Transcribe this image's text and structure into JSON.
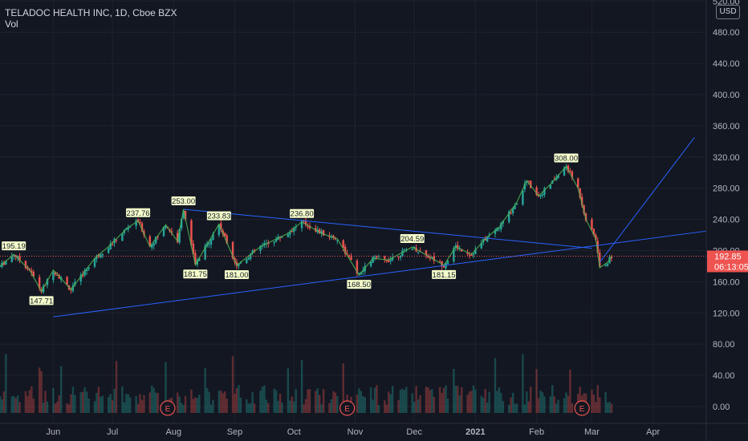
{
  "header": {
    "symbol_line": "TELADOC HEALTH INC, 1D, Cboe BZX",
    "volume_label": "Vol",
    "currency": "USD"
  },
  "colors": {
    "background": "#131722",
    "up": "#26a69a",
    "down": "#ef5350",
    "trendline": "#2962ff",
    "zigzag": "#4caf50",
    "pivot_label_bg": "#f5ffcc",
    "price_line": "#ef5350",
    "axis_text": "#b2b5be",
    "grid": "#1e222d",
    "earnings_marker": "#ef5350"
  },
  "chart_data": {
    "type": "candlestick",
    "title": "TELADOC HEALTH INC, 1D, Cboe BZX",
    "y_ticks": [
      "0.00",
      "40.00",
      "80.00",
      "120.00",
      "160.00",
      "200.00",
      "240.00",
      "280.00",
      "320.00",
      "360.00",
      "400.00",
      "440.00",
      "480.00",
      "520.00"
    ],
    "ylim": [
      0,
      540
    ],
    "x_ticks": [
      {
        "label": "Jun",
        "date": "2020-06-01"
      },
      {
        "label": "Jul",
        "date": "2020-07-01"
      },
      {
        "label": "Aug",
        "date": "2020-08-01"
      },
      {
        "label": "Sep",
        "date": "2020-09-01"
      },
      {
        "label": "Oct",
        "date": "2020-10-01"
      },
      {
        "label": "Nov",
        "date": "2020-11-01"
      },
      {
        "label": "Dec",
        "date": "2020-12-01"
      },
      {
        "label": "2021",
        "date": "2021-01-01"
      },
      {
        "label": "Feb",
        "date": "2021-02-01"
      },
      {
        "label": "Mar",
        "date": "2021-03-01"
      },
      {
        "label": "Apr",
        "date": "2021-04-01"
      }
    ],
    "xlim": [
      "2020-05-05",
      "2021-04-28"
    ],
    "price_path": [
      [
        "2020-05-05",
        180
      ],
      [
        "2020-05-12",
        195.19
      ],
      [
        "2020-05-20",
        175
      ],
      [
        "2020-05-26",
        147.71
      ],
      [
        "2020-06-01",
        175
      ],
      [
        "2020-06-10",
        150
      ],
      [
        "2020-06-22",
        190
      ],
      [
        "2020-06-29",
        205
      ],
      [
        "2020-07-09",
        230
      ],
      [
        "2020-07-14",
        237.76
      ],
      [
        "2020-07-20",
        205
      ],
      [
        "2020-07-28",
        233
      ],
      [
        "2020-08-03",
        212
      ],
      [
        "2020-08-06",
        253.0
      ],
      [
        "2020-08-12",
        181.75
      ],
      [
        "2020-08-24",
        233.83
      ],
      [
        "2020-09-02",
        181.0
      ],
      [
        "2020-09-14",
        205
      ],
      [
        "2020-09-28",
        222
      ],
      [
        "2020-10-05",
        236.8
      ],
      [
        "2020-10-15",
        222
      ],
      [
        "2020-10-23",
        215
      ],
      [
        "2020-11-03",
        168.5
      ],
      [
        "2020-11-10",
        190
      ],
      [
        "2020-11-18",
        188
      ],
      [
        "2020-11-30",
        204.59
      ],
      [
        "2020-12-10",
        190
      ],
      [
        "2020-12-16",
        181.15
      ],
      [
        "2020-12-22",
        205
      ],
      [
        "2020-12-30",
        195
      ],
      [
        "2021-01-06",
        215
      ],
      [
        "2021-01-13",
        230
      ],
      [
        "2021-01-22",
        262
      ],
      [
        "2021-01-27",
        290
      ],
      [
        "2021-02-02",
        270
      ],
      [
        "2021-02-08",
        285
      ],
      [
        "2021-02-16",
        308.0
      ],
      [
        "2021-02-22",
        280
      ],
      [
        "2021-02-26",
        240
      ],
      [
        "2021-03-03",
        215
      ],
      [
        "2021-03-05",
        178
      ],
      [
        "2021-03-09",
        185
      ],
      [
        "2021-03-11",
        192.85
      ]
    ],
    "pivots": [
      {
        "label": "195.19",
        "date": "2020-05-12",
        "value": 195.19,
        "position": "high"
      },
      {
        "label": "147.71",
        "date": "2020-05-26",
        "value": 147.71,
        "position": "low"
      },
      {
        "label": "237.76",
        "date": "2020-07-14",
        "value": 237.76,
        "position": "high"
      },
      {
        "label": "253.00",
        "date": "2020-08-06",
        "value": 253.0,
        "position": "high"
      },
      {
        "label": "181.75",
        "date": "2020-08-12",
        "value": 181.75,
        "position": "low"
      },
      {
        "label": "233.83",
        "date": "2020-08-24",
        "value": 233.83,
        "position": "high"
      },
      {
        "label": "181.00",
        "date": "2020-09-02",
        "value": 181.0,
        "position": "low"
      },
      {
        "label": "236.80",
        "date": "2020-10-05",
        "value": 236.8,
        "position": "high"
      },
      {
        "label": "168.50",
        "date": "2020-11-03",
        "value": 168.5,
        "position": "low"
      },
      {
        "label": "204.59",
        "date": "2020-11-30",
        "value": 204.59,
        "position": "high"
      },
      {
        "label": "181.15",
        "date": "2020-12-16",
        "value": 181.15,
        "position": "low"
      },
      {
        "label": "308.00",
        "date": "2021-02-16",
        "value": 308.0,
        "position": "high"
      }
    ],
    "trendlines": [
      {
        "from": [
          "2020-06-01",
          115
        ],
        "to": [
          "2021-04-28",
          225
        ]
      },
      {
        "from": [
          "2020-08-06",
          253
        ],
        "to": [
          "2021-03-01",
          203
        ]
      },
      {
        "from": [
          "2021-03-05",
          185
        ],
        "to": [
          "2021-04-22",
          345
        ]
      }
    ],
    "last_price": {
      "value": "192.85",
      "countdown": "06:13:05"
    },
    "earnings_dates": [
      "2020-07-29",
      "2020-10-28",
      "2021-02-24"
    ],
    "volume_label": "Vol"
  }
}
